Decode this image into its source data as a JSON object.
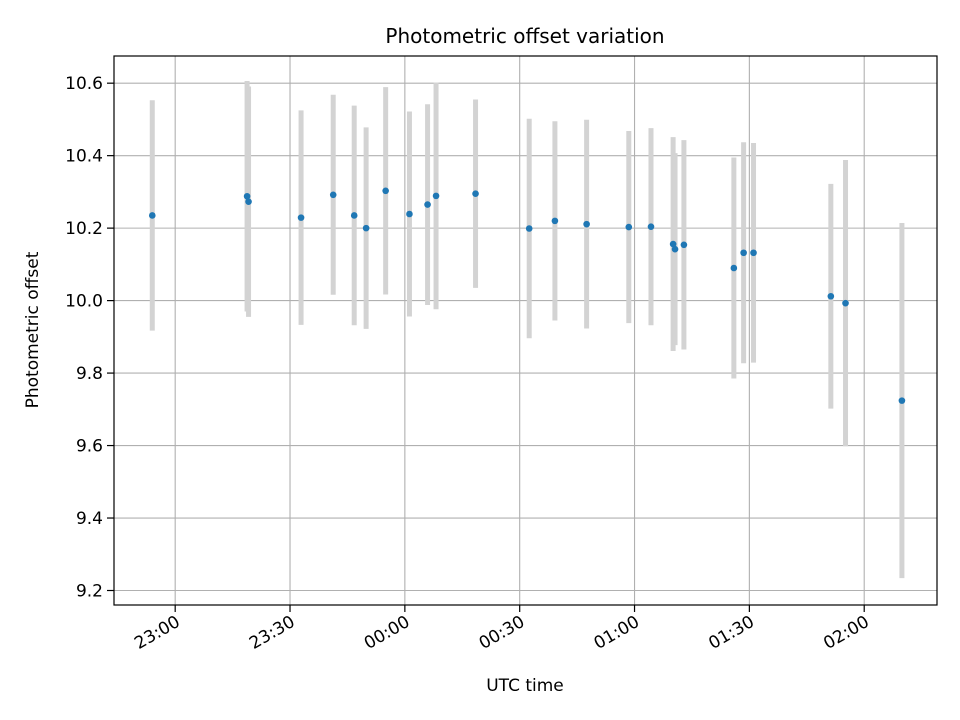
{
  "chart_data": {
    "type": "scatter",
    "title": "Photometric offset variation",
    "xlabel": "UTC time",
    "ylabel": "Photometric offset",
    "x_tick_labels": [
      "23:00",
      "23:30",
      "00:00",
      "00:30",
      "01:00",
      "01:30",
      "02:00"
    ],
    "x_ticks": [
      "22:59:59",
      "23:29:59",
      "23:59:59",
      "00:29:59",
      "00:59:59",
      "01:29:59",
      "01:59:59"
    ],
    "xlim": [
      "22:44:00",
      "02:19:00"
    ],
    "ylim": [
      9.16,
      10.675
    ],
    "y_ticks": [
      9.2,
      9.4,
      9.6,
      9.8,
      10.0,
      10.2,
      10.4,
      10.6
    ],
    "y_tick_labels": [
      "9.2",
      "9.4",
      "9.6",
      "9.8",
      "10.0",
      "10.2",
      "10.4",
      "10.6"
    ],
    "grid": true,
    "marker_color": "#1f77b4",
    "errorbar_color": "#d3d3d3",
    "points": [
      {
        "x": "22:54:00",
        "y": 10.235,
        "err": 0.318
      },
      {
        "x": "23:18:46",
        "y": 10.288,
        "err": 0.318
      },
      {
        "x": "23:19:09",
        "y": 10.273,
        "err": 0.318
      },
      {
        "x": "23:32:52",
        "y": 10.229,
        "err": 0.296
      },
      {
        "x": "23:41:16",
        "y": 10.292,
        "err": 0.276
      },
      {
        "x": "23:46:45",
        "y": 10.235,
        "err": 0.303
      },
      {
        "x": "23:49:52",
        "y": 10.2,
        "err": 0.278
      },
      {
        "x": "23:54:58",
        "y": 10.303,
        "err": 0.286
      },
      {
        "x": "00:01:11",
        "y": 10.239,
        "err": 0.283
      },
      {
        "x": "00:05:55",
        "y": 10.265,
        "err": 0.277
      },
      {
        "x": "00:08:08",
        "y": 10.289,
        "err": 0.313
      },
      {
        "x": "00:18:27",
        "y": 10.295,
        "err": 0.26
      },
      {
        "x": "00:32:28",
        "y": 10.199,
        "err": 0.303
      },
      {
        "x": "00:39:11",
        "y": 10.22,
        "err": 0.275
      },
      {
        "x": "00:47:28",
        "y": 10.211,
        "err": 0.288
      },
      {
        "x": "00:58:29",
        "y": 10.203,
        "err": 0.265
      },
      {
        "x": "01:04:17",
        "y": 10.204,
        "err": 0.272
      },
      {
        "x": "01:10:04",
        "y": 10.156,
        "err": 0.295
      },
      {
        "x": "01:10:34",
        "y": 10.142,
        "err": 0.265
      },
      {
        "x": "01:12:53",
        "y": 10.154,
        "err": 0.289
      },
      {
        "x": "01:25:56",
        "y": 10.09,
        "err": 0.305
      },
      {
        "x": "01:28:29",
        "y": 10.132,
        "err": 0.305
      },
      {
        "x": "01:31:04",
        "y": 10.132,
        "err": 0.303
      },
      {
        "x": "01:51:16",
        "y": 10.012,
        "err": 0.31
      },
      {
        "x": "01:55:06",
        "y": 9.993,
        "err": 0.395
      },
      {
        "x": "02:09:50",
        "y": 9.724,
        "err": 0.49
      }
    ]
  }
}
